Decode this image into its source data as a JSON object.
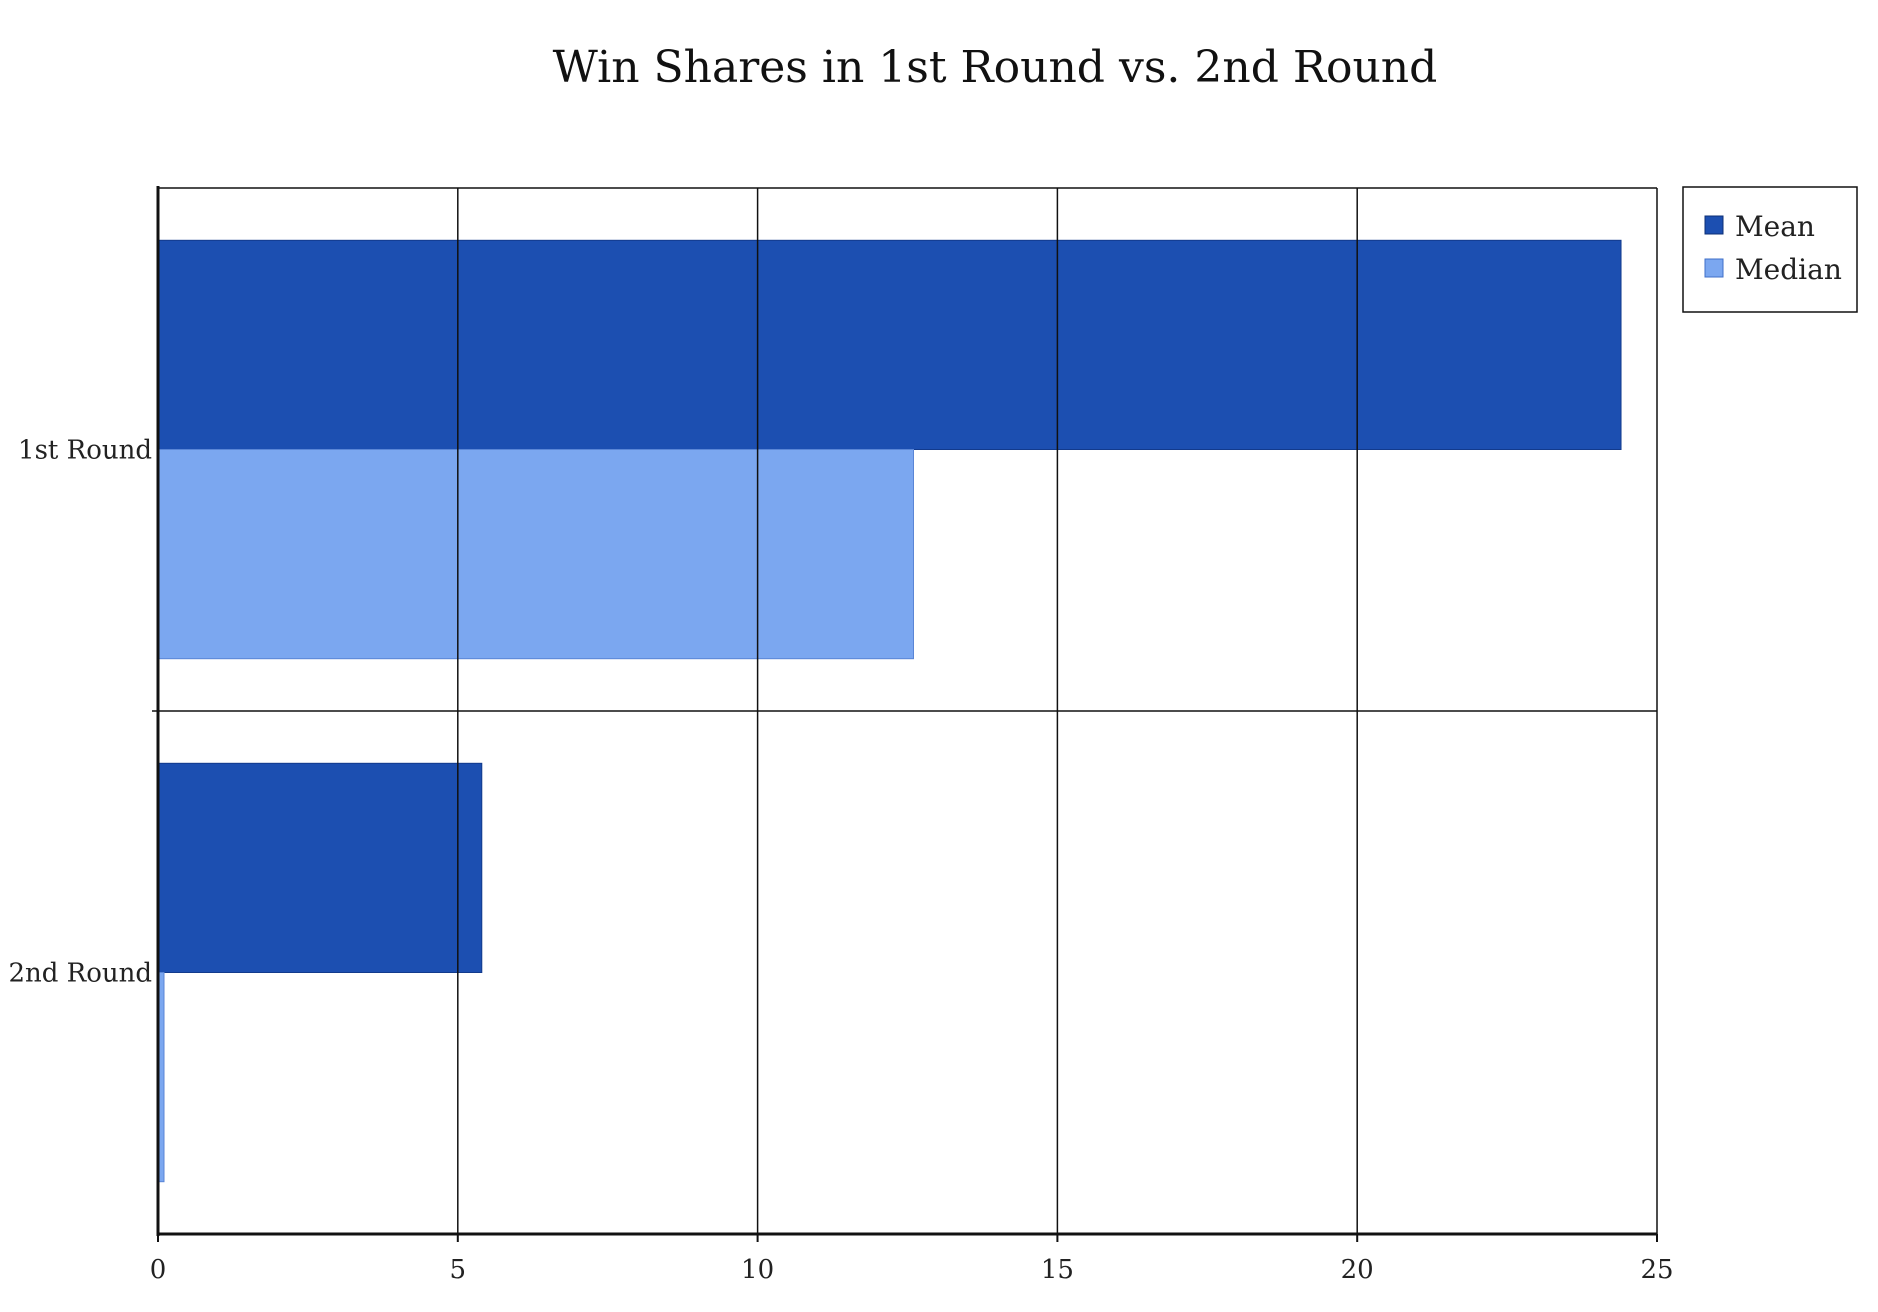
{
  "chart_data": {
    "type": "bar",
    "orientation": "horizontal",
    "title": "Win Shares in 1st Round vs. 2nd Round",
    "xlabel": "",
    "ylabel": "",
    "categories": [
      "1st Round",
      "2nd Round"
    ],
    "series": [
      {
        "name": "Mean",
        "values": [
          24.4,
          5.4
        ],
        "color": "#1c4fb1"
      },
      {
        "name": "Median",
        "values": [
          12.6,
          0.1
        ],
        "color": "#7ba7f0"
      }
    ],
    "xlim": [
      0,
      25
    ],
    "xticks": [
      "0",
      "5",
      "10",
      "15",
      "20",
      "25"
    ],
    "grid": true,
    "legend_position": "top-right"
  }
}
